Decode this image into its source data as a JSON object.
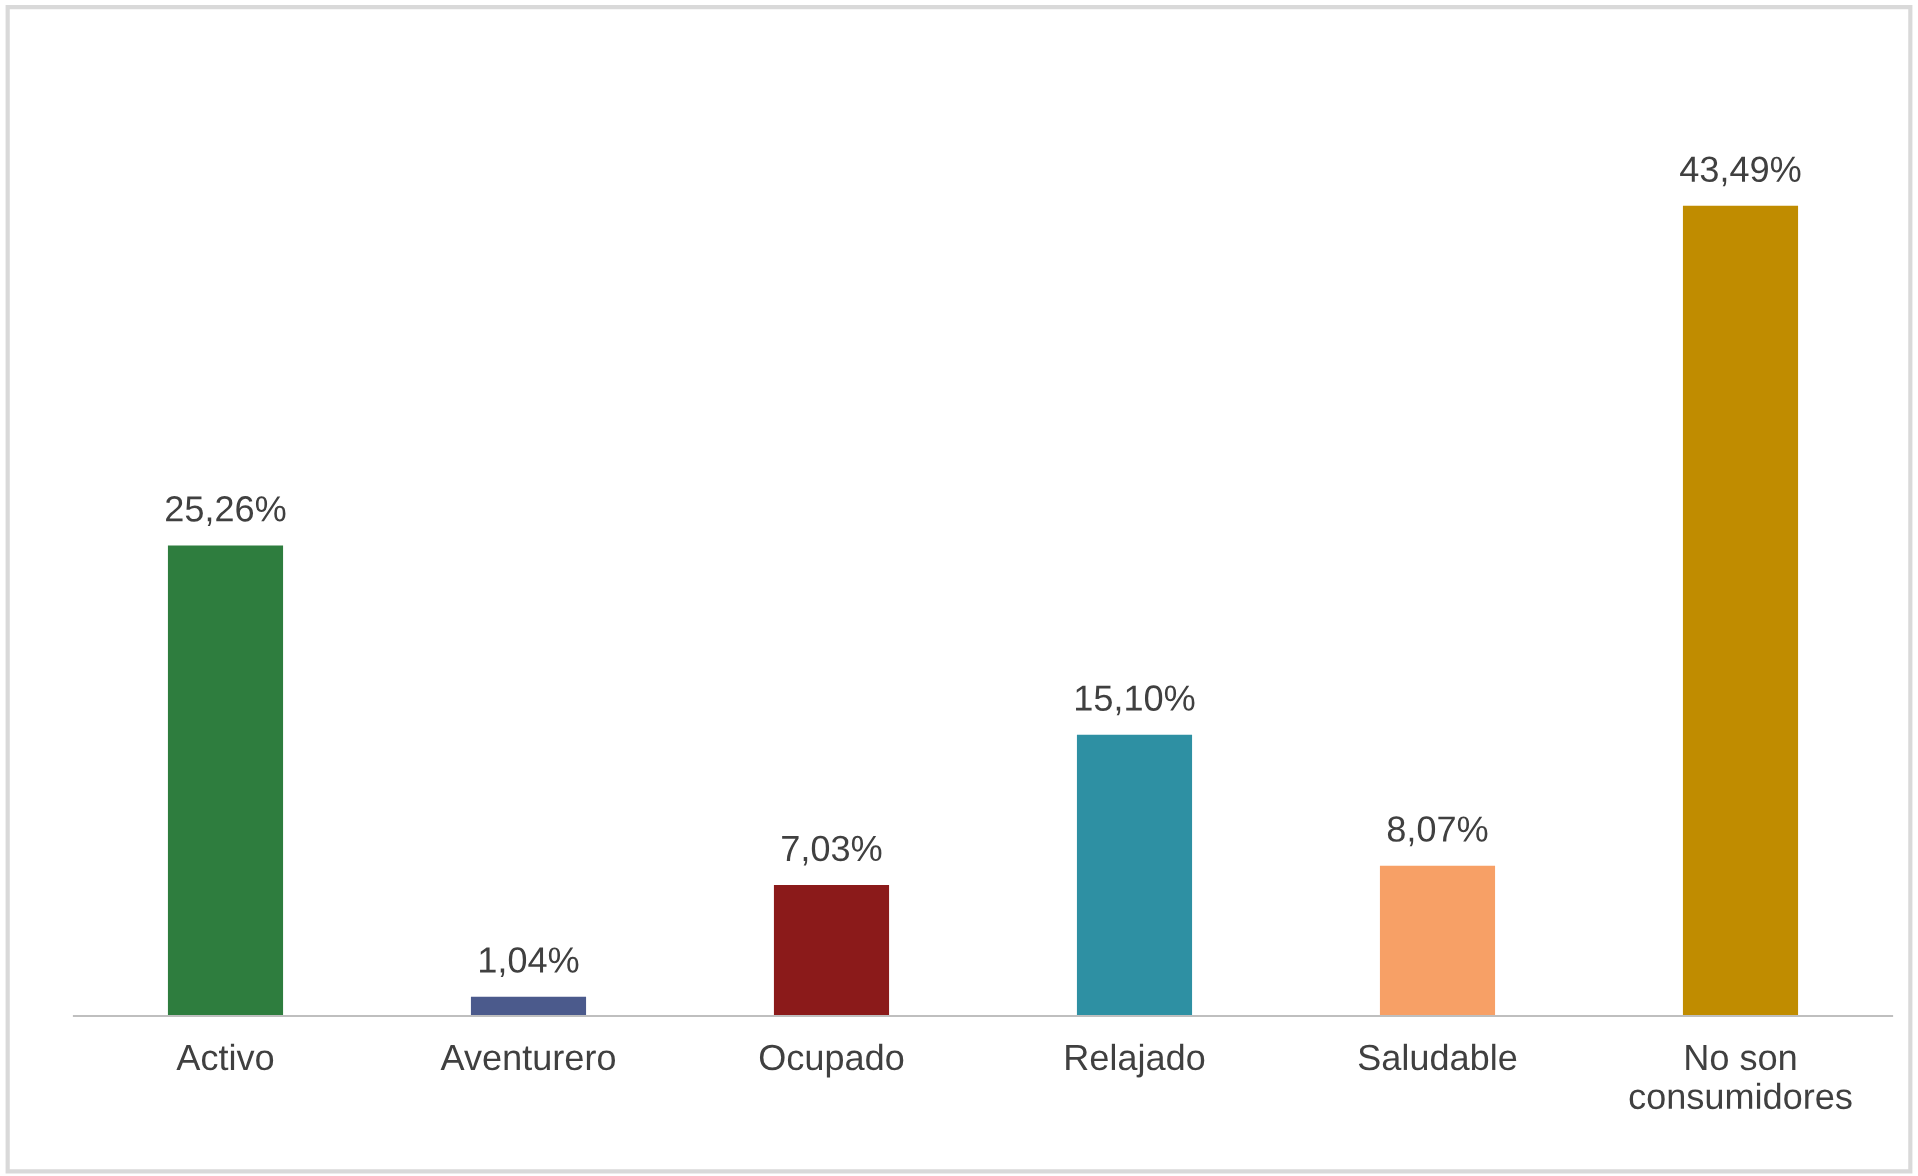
{
  "chart_data": {
    "type": "bar",
    "categories": [
      "Activo",
      "Aventurero",
      "Ocupado",
      "Relajado",
      "Saludable",
      "No son\nconsumidores"
    ],
    "values": [
      25.26,
      1.04,
      7.03,
      15.1,
      8.07,
      43.49
    ],
    "colors": [
      "#2e7d3e",
      "#4b5a8c",
      "#8b1a1a",
      "#2e90a3",
      "#f7a066",
      "#c08c00"
    ],
    "value_labels": [
      "25,26%",
      "1,04%",
      "7,03%",
      "15,10%",
      "8,07%",
      "43,49%"
    ],
    "grid": false,
    "legend": false
  }
}
